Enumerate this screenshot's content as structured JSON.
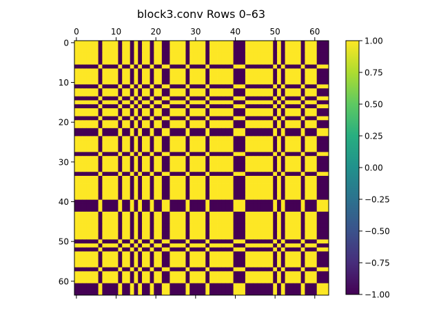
{
  "chart_data": {
    "type": "heatmap",
    "title": "block3.conv Rows 0–63",
    "rows": 64,
    "cols": 64,
    "colormap": "viridis",
    "value_range": [
      -1.0,
      1.0
    ],
    "sign_vector": [
      1,
      1,
      1,
      1,
      1,
      1,
      -1,
      1,
      1,
      1,
      1,
      -1,
      1,
      1,
      -1,
      1,
      -1,
      1,
      1,
      -1,
      1,
      1,
      -1,
      -1,
      1,
      1,
      1,
      1,
      -1,
      1,
      1,
      1,
      1,
      -1,
      1,
      1,
      1,
      1,
      1,
      1,
      -1,
      -1,
      -1,
      1,
      1,
      1,
      1,
      1,
      1,
      1,
      -1,
      1,
      -1,
      1,
      1,
      1,
      1,
      -1,
      1,
      1,
      1,
      -1,
      -1,
      -1
    ],
    "x_ticks": [
      0,
      10,
      20,
      30,
      40,
      50,
      60
    ],
    "x_tick_labels": [
      "0",
      "10",
      "20",
      "30",
      "40",
      "50",
      "60"
    ],
    "y_ticks": [
      0,
      10,
      20,
      30,
      40,
      50,
      60
    ],
    "y_tick_labels": [
      "0",
      "10",
      "20",
      "30",
      "40",
      "50",
      "60"
    ],
    "colorbar": {
      "ticks": [
        1.0,
        0.75,
        0.5,
        0.25,
        0.0,
        -0.25,
        -0.5,
        -0.75,
        -1.0
      ],
      "tick_labels": [
        "1.00",
        "0.75",
        "0.50",
        "0.25",
        "0.00",
        "−0.25",
        "−0.50",
        "−0.75",
        "−1.00"
      ]
    },
    "colors": {
      "positive": "#fde725",
      "negative": "#440154"
    }
  }
}
